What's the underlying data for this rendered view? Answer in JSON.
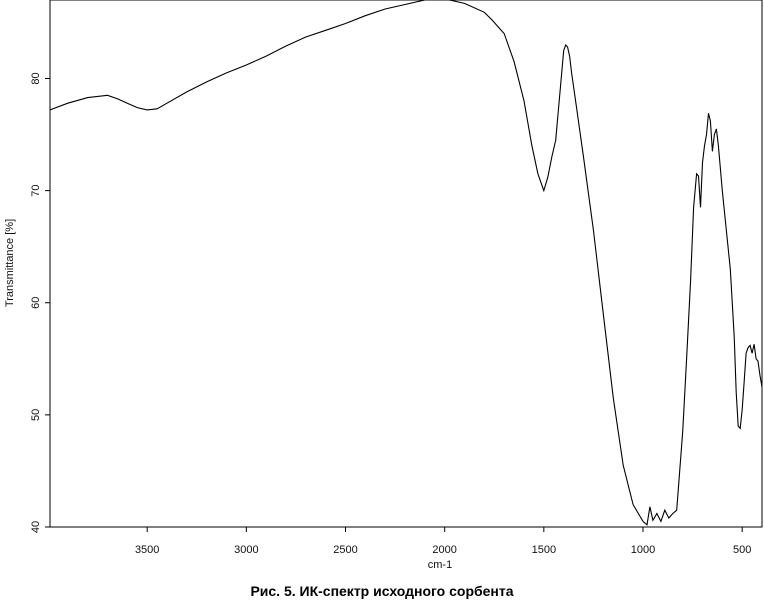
{
  "chart_data": {
    "type": "line",
    "title": "",
    "xlabel": "cm-1",
    "ylabel": "Transmittance [%]",
    "xlim": [
      3990,
      400
    ],
    "ylim": [
      40,
      87
    ],
    "x_reversed": true,
    "grid": false,
    "xticks": [
      3500,
      3000,
      2500,
      2000,
      1500,
      1000,
      500
    ],
    "xtick_labels": [
      "3500",
      "3000",
      "2500",
      "2000",
      "1500",
      "1000",
      "500"
    ],
    "yticks": [
      40,
      50,
      60,
      70,
      80
    ],
    "ytick_labels": [
      "40",
      "50",
      "60",
      "70",
      "80"
    ],
    "series": [
      {
        "color": "#000000",
        "x": [
          3990,
          3900,
          3800,
          3700,
          3650,
          3600,
          3550,
          3500,
          3450,
          3400,
          3300,
          3200,
          3100,
          3000,
          2900,
          2800,
          2700,
          2600,
          2500,
          2400,
          2300,
          2200,
          2100,
          2000,
          1900,
          1800,
          1760,
          1700,
          1650,
          1600,
          1560,
          1530,
          1500,
          1480,
          1460,
          1440,
          1420,
          1400,
          1390,
          1380,
          1370,
          1360,
          1340,
          1300,
          1250,
          1200,
          1150,
          1100,
          1050,
          1000,
          980,
          965,
          950,
          930,
          910,
          890,
          870,
          850,
          830,
          800,
          780,
          760,
          745,
          730,
          720,
          710,
          700,
          690,
          680,
          670,
          660,
          650,
          640,
          630,
          620,
          600,
          580,
          560,
          540,
          530,
          520,
          510,
          500,
          490,
          480,
          470,
          460,
          450,
          440,
          430,
          420,
          410,
          400
        ],
        "y": [
          77.2,
          77.8,
          78.3,
          78.5,
          78.2,
          77.8,
          77.4,
          77.2,
          77.3,
          77.8,
          78.8,
          79.7,
          80.5,
          81.2,
          82.0,
          82.9,
          83.7,
          84.3,
          84.9,
          85.6,
          86.2,
          86.6,
          87.0,
          87.1,
          86.7,
          85.9,
          85.2,
          84.0,
          81.5,
          78.0,
          74.0,
          71.5,
          70.0,
          71.2,
          73.0,
          74.5,
          78.5,
          82.5,
          83.0,
          82.8,
          82.0,
          80.5,
          78.0,
          73.0,
          66.5,
          59.0,
          51.5,
          45.5,
          42.0,
          40.5,
          40.2,
          41.8,
          40.6,
          41.2,
          40.5,
          41.5,
          40.8,
          41.2,
          41.5,
          48.5,
          55.0,
          62.0,
          68.5,
          71.5,
          71.3,
          68.5,
          72.5,
          74.0,
          75.0,
          76.9,
          76.2,
          73.5,
          75.0,
          75.5,
          74.0,
          70.0,
          66.5,
          63.0,
          57.0,
          52.0,
          49.0,
          48.8,
          50.5,
          53.0,
          55.5,
          56.0,
          56.2,
          55.5,
          56.3,
          55.0,
          54.8,
          53.5,
          52.5
        ]
      }
    ]
  },
  "caption": "Рис. 5. ИК-спектр исходного сорбента"
}
